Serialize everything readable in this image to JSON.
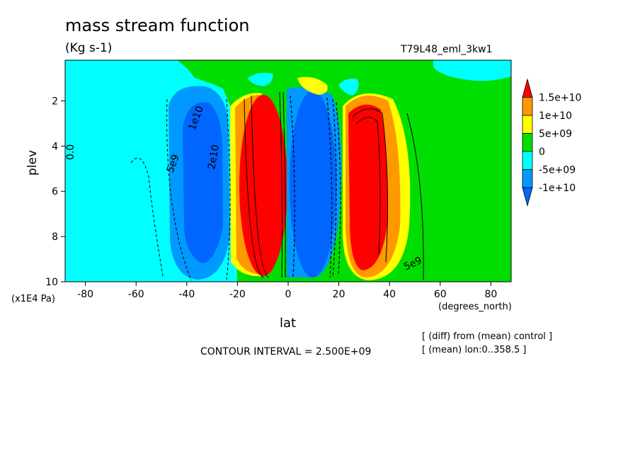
{
  "chart_data": {
    "type": "heatmap",
    "title": "mass stream function",
    "units": "(Kg s-1)",
    "run_label": "T79L48_eml_3kw1",
    "xlabel": "lat",
    "ylabel": "plev",
    "x_unit": "(degrees_north)",
    "y_unit": "(x1E4 Pa)",
    "xlim": [
      -88,
      88
    ],
    "ylim": [
      0.2,
      10
    ],
    "y_inverted": true,
    "x_ticks": [
      -80,
      -60,
      -40,
      -20,
      0,
      20,
      40,
      60,
      80
    ],
    "y_ticks": [
      2,
      4,
      6,
      8,
      10
    ],
    "contour_interval_text": "CONTOUR INTERVAL = 2.500E+09",
    "notes": [
      "[ (diff) from (mean) control ]",
      "[ (mean) lon:0..358.5 ]"
    ],
    "colorbar": {
      "labels": [
        "1.5e+10",
        "1e+10",
        "5e+09",
        "0",
        "-5e+09",
        "-1e+10"
      ],
      "colors": [
        "#ff0000",
        "#ff9900",
        "#ffff00",
        "#00dd00",
        "#00ffff",
        "#0099ff",
        "#0066ff"
      ]
    },
    "contour_labels": [
      "0.0",
      "5e9",
      "1e10",
      "2e10",
      "5e9"
    ],
    "cells": [
      {
        "lat_center": -33,
        "plev_center": 6.5,
        "sign": "negative",
        "peak": "-1e+10"
      },
      {
        "lat_center": -8,
        "plev_center": 5.5,
        "sign": "positive",
        "peak": "1.5e+10"
      },
      {
        "lat_center": 8,
        "plev_center": 5.5,
        "sign": "negative",
        "peak": "-1e+10"
      },
      {
        "lat_center": 36,
        "plev_center": 6.0,
        "sign": "positive",
        "peak": "1.5e+10"
      }
    ],
    "grid": false
  }
}
